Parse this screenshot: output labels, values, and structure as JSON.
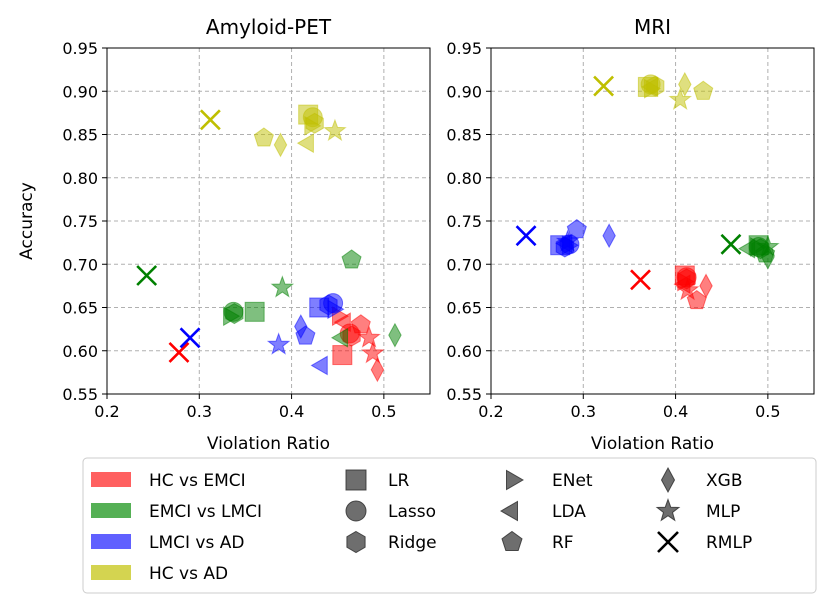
{
  "chart_data": [
    {
      "type": "scatter",
      "title": "Amyloid-PET",
      "xlabel": "Violation Ratio",
      "ylabel": "Accuracy",
      "xlim": [
        0.2,
        0.55
      ],
      "ylim": [
        0.55,
        0.95
      ],
      "xticks": [
        0.2,
        0.3,
        0.4,
        0.5
      ],
      "yticks": [
        0.55,
        0.6,
        0.65,
        0.7,
        0.75,
        0.8,
        0.85,
        0.9,
        0.95
      ],
      "grid": true,
      "series": [
        {
          "name": "HC vs EMCI",
          "points": [
            {
              "model": "LR",
              "x": 0.455,
              "y": 0.595
            },
            {
              "model": "Lasso",
              "x": 0.463,
              "y": 0.62
            },
            {
              "model": "Ridge",
              "x": 0.465,
              "y": 0.617
            },
            {
              "model": "ENet",
              "x": 0.45,
              "y": 0.64
            },
            {
              "model": "LDA",
              "x": 0.458,
              "y": 0.633
            },
            {
              "model": "RF",
              "x": 0.475,
              "y": 0.63
            },
            {
              "model": "XGB",
              "x": 0.493,
              "y": 0.578
            },
            {
              "model": "MLP",
              "x": 0.484,
              "y": 0.615
            },
            {
              "model": "MLP",
              "x": 0.488,
              "y": 0.597
            },
            {
              "model": "RMLP",
              "x": 0.278,
              "y": 0.598
            }
          ]
        },
        {
          "name": "EMCI vs LMCI",
          "points": [
            {
              "model": "LR",
              "x": 0.36,
              "y": 0.645
            },
            {
              "model": "Lasso",
              "x": 0.337,
              "y": 0.645
            },
            {
              "model": "Ridge",
              "x": 0.338,
              "y": 0.643
            },
            {
              "model": "ENet",
              "x": 0.332,
              "y": 0.64
            },
            {
              "model": "LDA",
              "x": 0.455,
              "y": 0.615
            },
            {
              "model": "RF",
              "x": 0.465,
              "y": 0.705
            },
            {
              "model": "XGB",
              "x": 0.512,
              "y": 0.618
            },
            {
              "model": "MLP",
              "x": 0.39,
              "y": 0.673
            },
            {
              "model": "RMLP",
              "x": 0.243,
              "y": 0.687
            }
          ]
        },
        {
          "name": "LMCI vs AD",
          "points": [
            {
              "model": "LR",
              "x": 0.43,
              "y": 0.65
            },
            {
              "model": "Lasso",
              "x": 0.445,
              "y": 0.655
            },
            {
              "model": "Ridge",
              "x": 0.44,
              "y": 0.653
            },
            {
              "model": "ENet",
              "x": 0.445,
              "y": 0.648
            },
            {
              "model": "LDA",
              "x": 0.433,
              "y": 0.583
            },
            {
              "model": "RF",
              "x": 0.415,
              "y": 0.617
            },
            {
              "model": "XGB",
              "x": 0.41,
              "y": 0.628
            },
            {
              "model": "MLP",
              "x": 0.386,
              "y": 0.607
            },
            {
              "model": "RMLP",
              "x": 0.29,
              "y": 0.615
            }
          ]
        },
        {
          "name": "HC vs AD",
          "points": [
            {
              "model": "LR",
              "x": 0.418,
              "y": 0.873
            },
            {
              "model": "Lasso",
              "x": 0.423,
              "y": 0.87
            },
            {
              "model": "Ridge",
              "x": 0.425,
              "y": 0.863
            },
            {
              "model": "ENet",
              "x": 0.42,
              "y": 0.86
            },
            {
              "model": "LDA",
              "x": 0.418,
              "y": 0.84
            },
            {
              "model": "RF",
              "x": 0.37,
              "y": 0.846
            },
            {
              "model": "XGB",
              "x": 0.388,
              "y": 0.838
            },
            {
              "model": "MLP",
              "x": 0.447,
              "y": 0.854
            },
            {
              "model": "RMLP",
              "x": 0.312,
              "y": 0.867
            }
          ]
        }
      ]
    },
    {
      "type": "scatter",
      "title": "MRI",
      "xlabel": "Violation Ratio",
      "ylabel": "",
      "xlim": [
        0.2,
        0.55
      ],
      "ylim": [
        0.55,
        0.95
      ],
      "xticks": [
        0.2,
        0.3,
        0.4,
        0.5
      ],
      "yticks": [
        0.55,
        0.6,
        0.65,
        0.7,
        0.75,
        0.8,
        0.85,
        0.9,
        0.95
      ],
      "grid": true,
      "series": [
        {
          "name": "HC vs EMCI",
          "points": [
            {
              "model": "LR",
              "x": 0.41,
              "y": 0.687
            },
            {
              "model": "Lasso",
              "x": 0.412,
              "y": 0.685
            },
            {
              "model": "Ridge",
              "x": 0.412,
              "y": 0.683
            },
            {
              "model": "ENet",
              "x": 0.408,
              "y": 0.68
            },
            {
              "model": "LDA",
              "x": 0.41,
              "y": 0.677
            },
            {
              "model": "RF",
              "x": 0.423,
              "y": 0.658
            },
            {
              "model": "XGB",
              "x": 0.433,
              "y": 0.675
            },
            {
              "model": "MLP",
              "x": 0.413,
              "y": 0.67
            },
            {
              "model": "RMLP",
              "x": 0.362,
              "y": 0.682
            }
          ]
        },
        {
          "name": "EMCI vs LMCI",
          "points": [
            {
              "model": "LR",
              "x": 0.49,
              "y": 0.722
            },
            {
              "model": "Lasso",
              "x": 0.49,
              "y": 0.72
            },
            {
              "model": "Ridge",
              "x": 0.492,
              "y": 0.718
            },
            {
              "model": "ENet",
              "x": 0.487,
              "y": 0.72
            },
            {
              "model": "LDA",
              "x": 0.48,
              "y": 0.718
            },
            {
              "model": "RF",
              "x": 0.497,
              "y": 0.712
            },
            {
              "model": "XGB",
              "x": 0.5,
              "y": 0.708
            },
            {
              "model": "MLP",
              "x": 0.5,
              "y": 0.72
            },
            {
              "model": "RMLP",
              "x": 0.46,
              "y": 0.723
            }
          ]
        },
        {
          "name": "LMCI vs AD",
          "points": [
            {
              "model": "LR",
              "x": 0.275,
              "y": 0.722
            },
            {
              "model": "Lasso",
              "x": 0.285,
              "y": 0.723
            },
            {
              "model": "Ridge",
              "x": 0.28,
              "y": 0.72
            },
            {
              "model": "ENet",
              "x": 0.283,
              "y": 0.722
            },
            {
              "model": "LDA",
              "x": 0.282,
              "y": 0.724
            },
            {
              "model": "RF",
              "x": 0.293,
              "y": 0.74
            },
            {
              "model": "XGB",
              "x": 0.328,
              "y": 0.733
            },
            {
              "model": "MLP",
              "x": 0.283,
              "y": 0.726
            },
            {
              "model": "RMLP",
              "x": 0.238,
              "y": 0.733
            }
          ]
        },
        {
          "name": "HC vs AD",
          "points": [
            {
              "model": "LR",
              "x": 0.37,
              "y": 0.905
            },
            {
              "model": "Lasso",
              "x": 0.373,
              "y": 0.908
            },
            {
              "model": "Ridge",
              "x": 0.378,
              "y": 0.906
            },
            {
              "model": "ENet",
              "x": 0.372,
              "y": 0.903
            },
            {
              "model": "LDA",
              "x": 0.375,
              "y": 0.905
            },
            {
              "model": "RF",
              "x": 0.43,
              "y": 0.9
            },
            {
              "model": "XGB",
              "x": 0.41,
              "y": 0.908
            },
            {
              "model": "MLP",
              "x": 0.405,
              "y": 0.89
            },
            {
              "model": "RMLP",
              "x": 0.322,
              "y": 0.906
            }
          ]
        }
      ]
    }
  ],
  "legend": {
    "comparisons": [
      {
        "label": "HC vs EMCI",
        "color": "#ff6060"
      },
      {
        "label": "EMCI vs LMCI",
        "color": "#55b055"
      },
      {
        "label": "LMCI vs AD",
        "color": "#6060ff"
      },
      {
        "label": "HC vs AD",
        "color": "#d4d450"
      }
    ],
    "models": [
      {
        "label": "LR",
        "marker": "square"
      },
      {
        "label": "Lasso",
        "marker": "circle"
      },
      {
        "label": "Ridge",
        "marker": "hexagon"
      },
      {
        "label": "ENet",
        "marker": "triangle-right"
      },
      {
        "label": "LDA",
        "marker": "triangle-left"
      },
      {
        "label": "RF",
        "marker": "pentagon"
      },
      {
        "label": "XGB",
        "marker": "thin-diamond"
      },
      {
        "label": "MLP",
        "marker": "star"
      },
      {
        "label": "RMLP",
        "marker": "x"
      }
    ]
  },
  "colors": {
    "HC vs EMCI": "#ff0000",
    "EMCI vs LMCI": "#008000",
    "LMCI vs AD": "#0000ff",
    "HC vs AD": "#bfbf00"
  }
}
